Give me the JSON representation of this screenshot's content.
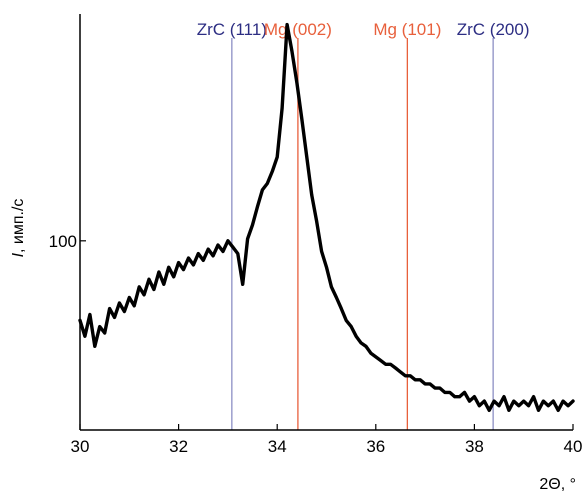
{
  "chart_data": {
    "type": "line",
    "title": "",
    "xlabel": "2Θ, °",
    "ylabel_italic": "I",
    "ylabel_rest": ", имп./с",
    "xlim": [
      30,
      40
    ],
    "x_ticks": [
      30,
      32,
      34,
      36,
      38,
      40
    ],
    "y_scale": "log",
    "y_ticks": [
      100
    ],
    "ylim": [
      40,
      300
    ],
    "grid": false,
    "series": [
      {
        "color": "#000000",
        "x": [
          30.0,
          30.1,
          30.2,
          30.3,
          30.4,
          30.5,
          30.6,
          30.7,
          30.8,
          30.9,
          31.0,
          31.1,
          31.2,
          31.3,
          31.4,
          31.5,
          31.6,
          31.7,
          31.8,
          31.9,
          32.0,
          32.1,
          32.2,
          32.3,
          32.4,
          32.5,
          32.6,
          32.7,
          32.8,
          32.9,
          33.0,
          33.1,
          33.2,
          33.3,
          33.4,
          33.5,
          33.6,
          33.7,
          33.8,
          33.9,
          34.0,
          34.1,
          34.2,
          34.3,
          34.4,
          34.5,
          34.6,
          34.7,
          34.8,
          34.9,
          35.0,
          35.1,
          35.2,
          35.3,
          35.4,
          35.5,
          35.6,
          35.7,
          35.8,
          35.9,
          36.0,
          36.1,
          36.2,
          36.3,
          36.4,
          36.5,
          36.6,
          36.7,
          36.8,
          36.9,
          37.0,
          37.1,
          37.2,
          37.3,
          37.4,
          37.5,
          37.6,
          37.7,
          37.8,
          37.9,
          38.0,
          38.1,
          38.2,
          38.3,
          38.4,
          38.5,
          38.6,
          38.7,
          38.8,
          38.9,
          39.0,
          39.1,
          39.2,
          39.3,
          39.4,
          39.5,
          39.6,
          39.7,
          39.8,
          39.9,
          40.0
        ],
        "y": [
          68,
          63,
          70,
          60,
          66,
          64,
          72,
          69,
          74,
          71,
          76,
          73,
          80,
          77,
          83,
          79,
          86,
          81,
          88,
          84,
          90,
          87,
          92,
          89,
          94,
          91,
          96,
          93,
          98,
          95,
          100,
          97,
          94,
          81,
          101,
          108,
          118,
          128,
          132,
          140,
          150,
          190,
          285,
          250,
          215,
          180,
          150,
          125,
          110,
          95,
          88,
          80,
          76,
          72,
          68,
          66,
          63,
          61,
          60,
          58,
          57,
          56,
          55,
          55,
          54,
          53,
          52,
          52,
          51,
          51,
          50,
          50,
          49,
          49,
          48,
          48,
          47,
          47,
          48,
          46,
          47,
          45,
          46,
          44,
          46,
          45,
          47,
          44,
          46,
          45,
          46,
          45,
          47,
          44,
          46,
          45,
          46,
          44,
          46,
          45,
          46
        ]
      }
    ],
    "reference_lines": [
      {
        "x": 33.08,
        "label": "ZrC (111)",
        "color": "#2d2e83",
        "line_color": "#8c8fc4"
      },
      {
        "x": 34.42,
        "label": "Mg (002)",
        "color": "#e8603c",
        "line_color": "#e8603c"
      },
      {
        "x": 36.64,
        "label": "Mg (101)",
        "color": "#e8603c",
        "line_color": "#e8603c"
      },
      {
        "x": 38.38,
        "label": "ZrC (200)",
        "color": "#2d2e83",
        "line_color": "#8c8fc4"
      }
    ]
  }
}
